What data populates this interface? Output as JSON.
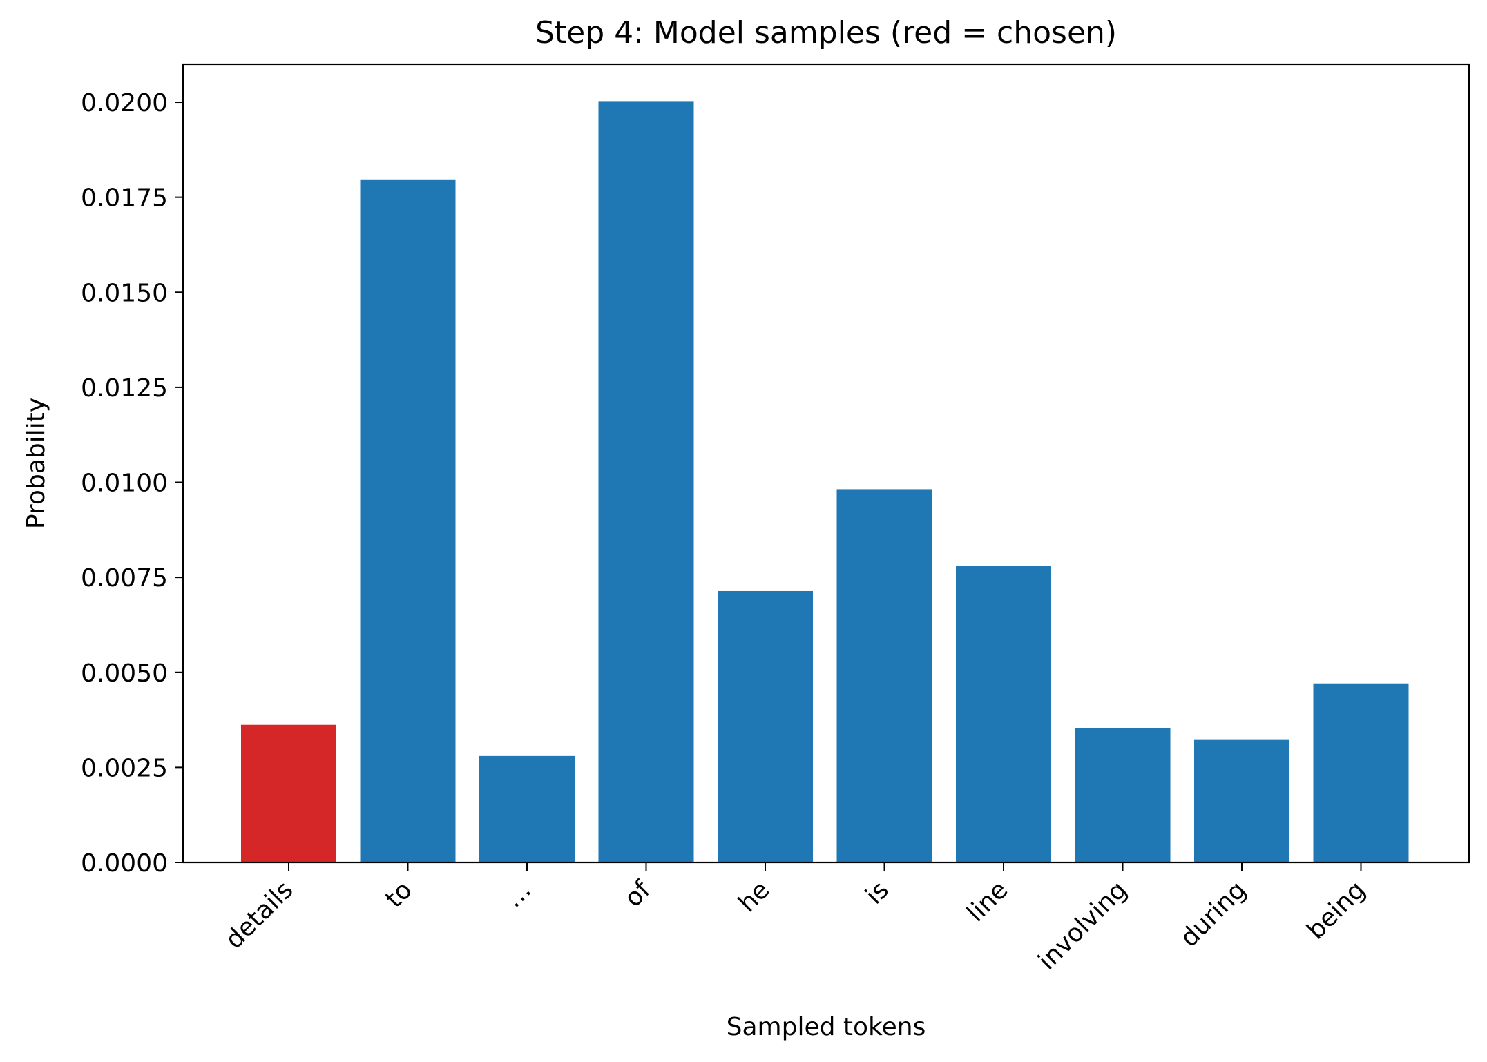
{
  "chart_data": {
    "type": "bar",
    "title": "Step 4: Model samples (red = chosen)",
    "xlabel": "Sampled tokens",
    "ylabel": "Probability",
    "categories": [
      "details",
      "to",
      "…",
      "of",
      "he",
      "is",
      "line",
      "involving",
      "during",
      "being"
    ],
    "values": [
      0.00362,
      0.01797,
      0.0028,
      0.02003,
      0.00714,
      0.00982,
      0.0078,
      0.00354,
      0.00324,
      0.00471
    ],
    "chosen_index": 0,
    "ylim": [
      0,
      0.021
    ],
    "yticks": [
      0.0,
      0.0025,
      0.005,
      0.0075,
      0.01,
      0.0125,
      0.015,
      0.0175,
      0.02
    ],
    "ytick_labels": [
      "0.0000",
      "0.0025",
      "0.0050",
      "0.0075",
      "0.0100",
      "0.0125",
      "0.0150",
      "0.0175",
      "0.0200"
    ],
    "grid": false,
    "colors": {
      "default": "#1f77b4",
      "chosen": "#d62728"
    }
  }
}
